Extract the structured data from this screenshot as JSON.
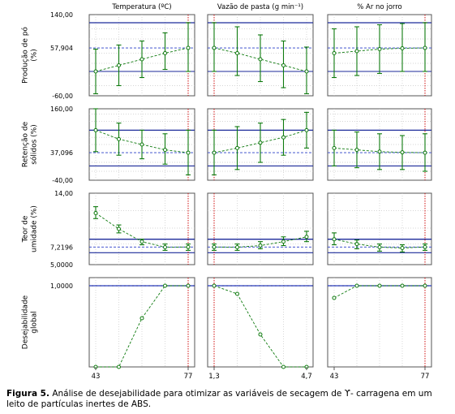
{
  "chart_data": {
    "type": "line",
    "columns": [
      {
        "title": "Temperatura (ºC)",
        "tick_labels": [
          "43",
          "77"
        ],
        "x": [
          43,
          51.5,
          60,
          68.5,
          77
        ],
        "current": 77
      },
      {
        "title": "Vazão de pasta (g min⁻¹)",
        "tick_labels": [
          "1,3",
          "4,7"
        ],
        "x": [
          1.3,
          2.15,
          3.0,
          3.85,
          4.7
        ],
        "current": 1.3
      },
      {
        "title": "% Ar no jorro",
        "tick_labels": [
          "43",
          "77"
        ],
        "x": [
          43,
          51.5,
          60,
          68.5,
          77
        ],
        "current": 77
      }
    ],
    "rows": [
      {
        "ylabel": [
          "Produção de pó",
          "(%)"
        ],
        "ylim": [
          -60,
          140
        ],
        "ticks": [
          "140,00",
          "57,904",
          "-60,00"
        ],
        "tick_values": [
          140,
          57.904,
          -60
        ],
        "current": 57.904,
        "upper_line": 120,
        "lower_line": 0,
        "grid": [
          -35,
          -10,
          20,
          45,
          80,
          105
        ],
        "panels": [
          {
            "means": [
              0,
              15,
              30,
              45,
              57.904
            ],
            "upper": [
              55,
              65,
              75,
              95,
              120
            ],
            "lower": [
              -55,
              -35,
              -15,
              5,
              0
            ]
          },
          {
            "means": [
              57.904,
              45,
              30,
              15,
              0
            ],
            "upper": [
              120,
              110,
              90,
              75,
              60
            ],
            "lower": [
              0,
              -10,
              -25,
              -40,
              -55
            ]
          },
          {
            "means": [
              45,
              50,
              55,
              57,
              57.904
            ],
            "upper": [
              105,
              110,
              115,
              118,
              120
            ],
            "lower": [
              -15,
              -10,
              -5,
              0,
              0
            ]
          }
        ]
      },
      {
        "ylabel": [
          "Retenção de",
          "sólidos (%)"
        ],
        "ylim": [
          -40,
          160
        ],
        "ticks": [
          "160,00",
          "37,096",
          "-40,00"
        ],
        "tick_values": [
          160,
          37.096,
          -40
        ],
        "current": 37.096,
        "upper_line": 100,
        "lower_line": 0,
        "grid": [
          -15,
          10,
          60,
          80,
          125,
          145
        ],
        "panels": [
          {
            "means": [
              100,
              75,
              60,
              45,
              37.096
            ],
            "upper": [
              160,
              120,
              100,
              90,
              100
            ],
            "lower": [
              40,
              30,
              20,
              5,
              -25
            ]
          },
          {
            "means": [
              37.096,
              50,
              65,
              80,
              100
            ],
            "upper": [
              100,
              110,
              120,
              130,
              150
            ],
            "lower": [
              -25,
              -10,
              10,
              30,
              50
            ]
          },
          {
            "means": [
              50,
              45,
              40,
              38,
              37.096
            ],
            "upper": [
              100,
              95,
              90,
              85,
              90
            ],
            "lower": [
              0,
              -5,
              -10,
              -10,
              -15
            ]
          }
        ]
      },
      {
        "ylabel": [
          "Teor de",
          "umidade (%)"
        ],
        "ylim": [
          5,
          14
        ],
        "ticks": [
          "14,00",
          "7,2196",
          "5,0000"
        ],
        "tick_values": [
          14,
          7.2196,
          5
        ],
        "current": 7.2196,
        "upper_line": 8.2,
        "lower_line": 6.5,
        "grid": [
          7.6,
          9.6,
          11.8
        ],
        "panels": [
          {
            "means": [
              11.5,
              9.5,
              7.9,
              7.2,
              7.2196
            ],
            "upper": [
              12.3,
              10.0,
              8.2,
              7.6,
              7.6
            ],
            "lower": [
              10.8,
              9.0,
              7.5,
              6.8,
              6.8
            ]
          },
          {
            "means": [
              7.2196,
              7.2,
              7.4,
              7.9,
              8.5
            ],
            "upper": [
              7.6,
              7.6,
              7.9,
              8.5,
              9.2
            ],
            "lower": [
              6.8,
              6.8,
              7.0,
              7.4,
              7.9
            ]
          },
          {
            "means": [
              8.2,
              7.6,
              7.2,
              7.1,
              7.2196
            ],
            "upper": [
              9.0,
              8.1,
              7.6,
              7.5,
              7.6
            ],
            "lower": [
              7.5,
              7.0,
              6.7,
              6.6,
              6.8
            ]
          }
        ]
      },
      {
        "ylabel": [
          "Desejabilidade",
          "global"
        ],
        "ylim": [
          0,
          1.1
        ],
        "ticks": [
          "1,0000"
        ],
        "tick_values": [
          1
        ],
        "current": 1.0,
        "upper_line": 1.0,
        "lower_line": null,
        "grid": [],
        "panels": [
          {
            "means": [
              0,
              0,
              0.6,
              1.0,
              1.0
            ]
          },
          {
            "means": [
              1.0,
              0.9,
              0.4,
              0,
              0
            ]
          },
          {
            "means": [
              0.85,
              1.0,
              1.0,
              1.0,
              1.0
            ]
          }
        ]
      }
    ]
  },
  "caption": {
    "label": "Figura 5.",
    "text": "Análise de desejabilidade para otimizar as variáveis de secagem de ϒ- carragena em um leito de partículas inertes de ABS."
  }
}
